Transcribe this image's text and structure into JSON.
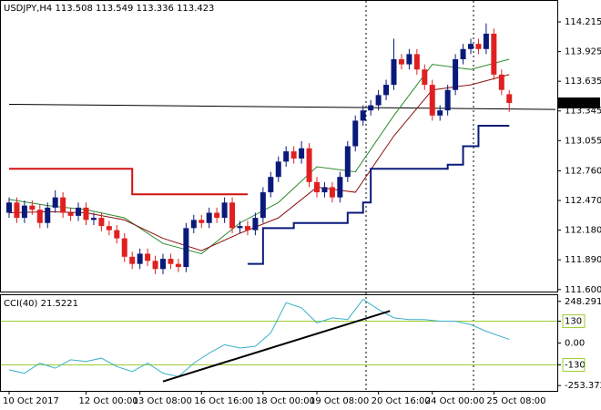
{
  "chart_data": [
    {
      "type": "candlestick",
      "title": "USDJPY,H4 113.508 113.549 113.336 113.423",
      "up_color": "#0a1a7a",
      "down_color": "#e02020",
      "ylim": [
        111.58,
        114.42
      ],
      "yticks": [
        114.215,
        113.925,
        113.635,
        113.345,
        113.055,
        {
          "value": 112.76,
          "label": "112.760"
        },
        {
          "value": 112.47,
          "label": "112.470"
        },
        {
          "value": 112.18,
          "label": "112.180"
        },
        {
          "value": 111.89,
          "label": "111.890"
        },
        {
          "value": 111.6,
          "label": "111.600"
        }
      ],
      "xticks": [
        {
          "value": 0,
          "label": "10 Oct 2017"
        },
        {
          "value": 10,
          "label": "12 Oct 00:00"
        },
        {
          "value": 17,
          "label": "13 Oct 08:00"
        },
        {
          "value": 25,
          "label": "16 Oct 16:00"
        },
        {
          "value": 33,
          "label": "18 Oct 00:00"
        },
        {
          "value": 40,
          "label": "19 Oct 08:00"
        },
        {
          "value": 48,
          "label": "20 Oct 16:00"
        },
        {
          "value": 55,
          "label": "24 Oct 00:00"
        },
        {
          "value": 63,
          "label": "25 Oct 08:00"
        }
      ],
      "ohlc": [
        [
          112.35,
          112.5,
          112.3,
          112.45
        ],
        [
          112.45,
          112.5,
          112.25,
          112.3
        ],
        [
          112.3,
          112.47,
          112.25,
          112.42
        ],
        [
          112.42,
          112.47,
          112.33,
          112.38
        ],
        [
          112.38,
          112.43,
          112.2,
          112.25
        ],
        [
          112.25,
          112.45,
          112.2,
          112.4
        ],
        [
          112.4,
          112.57,
          112.35,
          112.5
        ],
        [
          112.5,
          112.55,
          112.3,
          112.35
        ],
        [
          112.35,
          112.4,
          112.27,
          112.32
        ],
        [
          112.32,
          112.45,
          112.27,
          112.4
        ],
        [
          112.4,
          112.45,
          112.23,
          112.28
        ],
        [
          112.28,
          112.35,
          112.23,
          112.3
        ],
        [
          112.3,
          112.35,
          112.17,
          112.22
        ],
        [
          112.22,
          112.27,
          112.13,
          112.18
        ],
        [
          112.18,
          112.23,
          112.05,
          112.1
        ],
        [
          112.1,
          112.15,
          111.87,
          111.92
        ],
        [
          111.92,
          111.97,
          111.8,
          111.85
        ],
        [
          111.85,
          112.0,
          111.8,
          111.95
        ],
        [
          111.95,
          112.0,
          111.83,
          111.88
        ],
        [
          111.88,
          111.93,
          111.75,
          111.8
        ],
        [
          111.8,
          111.95,
          111.75,
          111.9
        ],
        [
          111.9,
          111.95,
          111.8,
          111.85
        ],
        [
          111.85,
          111.9,
          111.77,
          111.82
        ],
        [
          111.82,
          112.25,
          111.77,
          112.2
        ],
        [
          112.2,
          112.33,
          112.15,
          112.28
        ],
        [
          112.28,
          112.33,
          112.2,
          112.25
        ],
        [
          112.25,
          112.4,
          112.2,
          112.35
        ],
        [
          112.35,
          112.4,
          112.25,
          112.3
        ],
        [
          112.3,
          112.5,
          112.25,
          112.45
        ],
        [
          112.45,
          112.5,
          112.15,
          112.2
        ],
        [
          112.2,
          112.27,
          112.15,
          112.22
        ],
        [
          112.22,
          112.27,
          112.13,
          112.18
        ],
        [
          112.18,
          112.35,
          112.13,
          112.3
        ],
        [
          112.3,
          112.6,
          112.25,
          112.55
        ],
        [
          112.55,
          112.75,
          112.5,
          112.7
        ],
        [
          112.7,
          112.9,
          112.65,
          112.85
        ],
        [
          112.85,
          113.0,
          112.8,
          112.95
        ],
        [
          112.95,
          113.0,
          112.83,
          112.88
        ],
        [
          112.88,
          113.05,
          112.83,
          112.98
        ],
        [
          112.98,
          113.03,
          112.6,
          112.65
        ],
        [
          112.65,
          112.7,
          112.5,
          112.55
        ],
        [
          112.55,
          112.65,
          112.5,
          112.6
        ],
        [
          112.6,
          112.65,
          112.45,
          112.5
        ],
        [
          112.5,
          112.75,
          112.45,
          112.7
        ],
        [
          112.7,
          113.05,
          112.65,
          113.0
        ],
        [
          113.0,
          113.3,
          112.95,
          113.25
        ],
        [
          113.25,
          113.4,
          113.2,
          113.35
        ],
        [
          113.35,
          113.45,
          113.3,
          113.4
        ],
        [
          113.4,
          113.55,
          113.35,
          113.5
        ],
        [
          113.5,
          113.65,
          113.45,
          113.6
        ],
        [
          113.6,
          114.05,
          113.55,
          113.85
        ],
        [
          113.85,
          113.9,
          113.75,
          113.8
        ],
        [
          113.8,
          113.95,
          113.75,
          113.9
        ],
        [
          113.9,
          113.95,
          113.7,
          113.75
        ],
        [
          113.75,
          113.8,
          113.55,
          113.6
        ],
        [
          113.6,
          113.65,
          113.25,
          113.3
        ],
        [
          113.3,
          113.4,
          113.25,
          113.35
        ],
        [
          113.35,
          113.6,
          113.3,
          113.55
        ],
        [
          113.55,
          113.9,
          113.5,
          113.85
        ],
        [
          113.85,
          114.0,
          113.8,
          113.95
        ],
        [
          113.95,
          114.05,
          113.9,
          114.0
        ],
        [
          114.0,
          114.05,
          113.9,
          113.95
        ],
        [
          113.95,
          114.2,
          113.9,
          114.1
        ],
        [
          114.1,
          114.15,
          113.65,
          113.7
        ],
        [
          113.7,
          113.75,
          113.5,
          113.55
        ],
        [
          113.508,
          113.549,
          113.336,
          113.423
        ]
      ],
      "indicators": [
        {
          "color": "#000000",
          "step": false,
          "x": [
            0,
            71
          ],
          "values": [
            113.41,
            113.36
          ]
        },
        {
          "color": "#2e8b2e",
          "step": false,
          "x": [
            0,
            5,
            10,
            15,
            20,
            25,
            30,
            35,
            40,
            45,
            50,
            55,
            60,
            65
          ],
          "values": [
            112.48,
            112.42,
            112.38,
            112.3,
            112.05,
            111.95,
            112.25,
            112.45,
            112.8,
            112.75,
            113.3,
            113.8,
            113.75,
            113.85
          ]
        },
        {
          "color": "#8b1010",
          "step": false,
          "x": [
            0,
            5,
            10,
            15,
            20,
            25,
            30,
            35,
            40,
            45,
            50,
            55,
            60,
            65
          ],
          "values": [
            112.35,
            112.36,
            112.35,
            112.28,
            112.1,
            111.98,
            112.15,
            112.3,
            112.6,
            112.55,
            113.1,
            113.55,
            113.6,
            113.7
          ]
        },
        {
          "color": "#d01010",
          "step": true,
          "x": [
            0,
            14,
            16,
            31
          ],
          "values": [
            112.78,
            112.78,
            112.53,
            112.53
          ]
        },
        {
          "color": "#0a1a7a",
          "step": true,
          "x": [
            31,
            33,
            37,
            44,
            46,
            47,
            57,
            59,
            61,
            65
          ],
          "values": [
            111.85,
            112.2,
            112.25,
            112.35,
            112.45,
            112.78,
            112.82,
            113.0,
            113.2,
            113.2
          ]
        }
      ]
    },
    {
      "type": "line",
      "label": "CCI(40) 21.5221",
      "color": "#3ab0c8",
      "level_color": "#9acd32",
      "ylim": [
        -285,
        285
      ],
      "yticks": [
        248.291,
        130,
        {
          "value": 0,
          "label": "0.00"
        },
        -130,
        -253.372
      ],
      "levels": [
        130,
        -130
      ],
      "x": [
        0,
        2,
        4,
        6,
        8,
        10,
        12,
        14,
        16,
        18,
        20,
        22,
        24,
        26,
        28,
        30,
        32,
        34,
        36,
        38,
        40,
        42,
        44,
        46,
        48,
        50,
        52,
        54,
        56,
        58,
        60,
        62,
        65
      ],
      "values": [
        -160,
        -180,
        -120,
        -150,
        -100,
        -110,
        -90,
        -140,
        -170,
        -120,
        -180,
        -200,
        -120,
        -60,
        -10,
        -30,
        -20,
        60,
        240,
        210,
        120,
        150,
        140,
        260,
        200,
        150,
        140,
        140,
        130,
        130,
        110,
        70,
        21.5221
      ],
      "trendline": {
        "color": "#000000",
        "x": [
          20,
          49.5
        ],
        "values": [
          -229,
          191
        ]
      }
    }
  ]
}
